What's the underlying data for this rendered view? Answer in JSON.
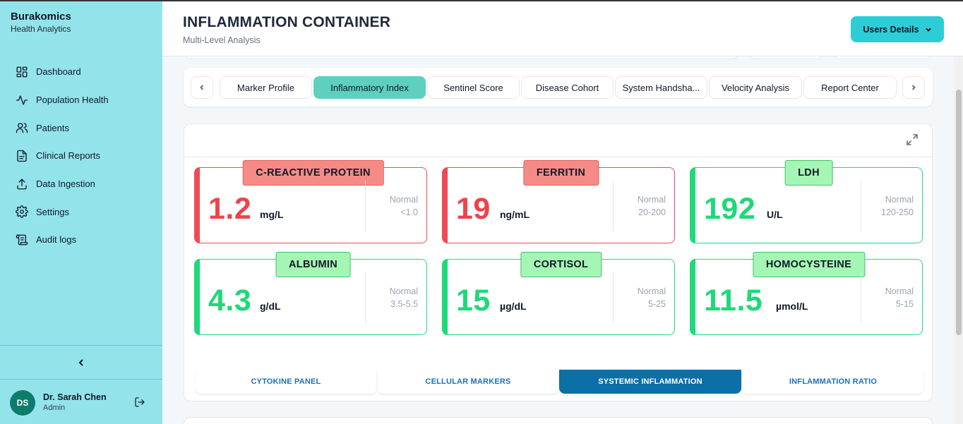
{
  "brand": {
    "name": "Burakomics",
    "subtitle": "Health Analytics"
  },
  "nav": [
    {
      "label": "Dashboard",
      "icon": "dashboard-icon"
    },
    {
      "label": "Population Health",
      "icon": "activity-icon"
    },
    {
      "label": "Patients",
      "icon": "users-icon"
    },
    {
      "label": "Clinical Reports",
      "icon": "file-text-icon"
    },
    {
      "label": "Data Ingestion",
      "icon": "upload-icon"
    },
    {
      "label": "Settings",
      "icon": "gear-icon"
    },
    {
      "label": "Audit logs",
      "icon": "scroll-icon"
    }
  ],
  "user": {
    "initials": "DS",
    "name": "Dr. Sarah Chen",
    "role": "Admin"
  },
  "header": {
    "title": "INFLAMMATION CONTAINER",
    "subtitle": "Multi-Level Analysis",
    "users_button": "Users Details"
  },
  "tabs": [
    {
      "label": "Marker Profile",
      "active": false
    },
    {
      "label": "Inflammatory Index",
      "active": true
    },
    {
      "label": "Sentinel Score",
      "active": false
    },
    {
      "label": "Disease Cohort",
      "active": false
    },
    {
      "label": "System Handsha...",
      "active": false
    },
    {
      "label": "Velocity Analysis",
      "active": false
    },
    {
      "label": "Report Center",
      "active": false
    }
  ],
  "markers": [
    {
      "name": "C-REACTIVE PROTEIN",
      "value": "1.2",
      "unit": "mg/L",
      "normal_label": "Normal",
      "range": "<1.0",
      "status": "red"
    },
    {
      "name": "FERRITIN",
      "value": "19",
      "unit": "ng/mL",
      "normal_label": "Normal",
      "range": "20-200",
      "status": "red"
    },
    {
      "name": "LDH",
      "value": "192",
      "unit": "U/L",
      "normal_label": "Normal",
      "range": "120-250",
      "status": "green"
    },
    {
      "name": "ALBUMIN",
      "value": "4.3",
      "unit": "g/dL",
      "normal_label": "Normal",
      "range": "3.5-5.5",
      "status": "green"
    },
    {
      "name": "CORTISOL",
      "value": "15",
      "unit": "µg/dL",
      "normal_label": "Normal",
      "range": "5-25",
      "status": "green"
    },
    {
      "name": "HOMOCYSTEINE",
      "value": "11.5",
      "unit": "µmol/L",
      "normal_label": "Normal",
      "range": "5-15",
      "status": "green"
    }
  ],
  "subtabs": [
    {
      "label": "CYTOKINE PANEL",
      "active": false
    },
    {
      "label": "CELLULAR MARKERS",
      "active": false
    },
    {
      "label": "SYSTEMIC INFLAMMATION",
      "active": true
    },
    {
      "label": "INFLAMMATION RATIO",
      "active": false
    }
  ],
  "colors": {
    "sidebar": "#93e3ea",
    "accent": "#2dcdd6",
    "active_tab": "#5fcfbf",
    "alert": "#f0424c",
    "ok": "#1dd979",
    "active_subtab": "#0b6fa8"
  }
}
